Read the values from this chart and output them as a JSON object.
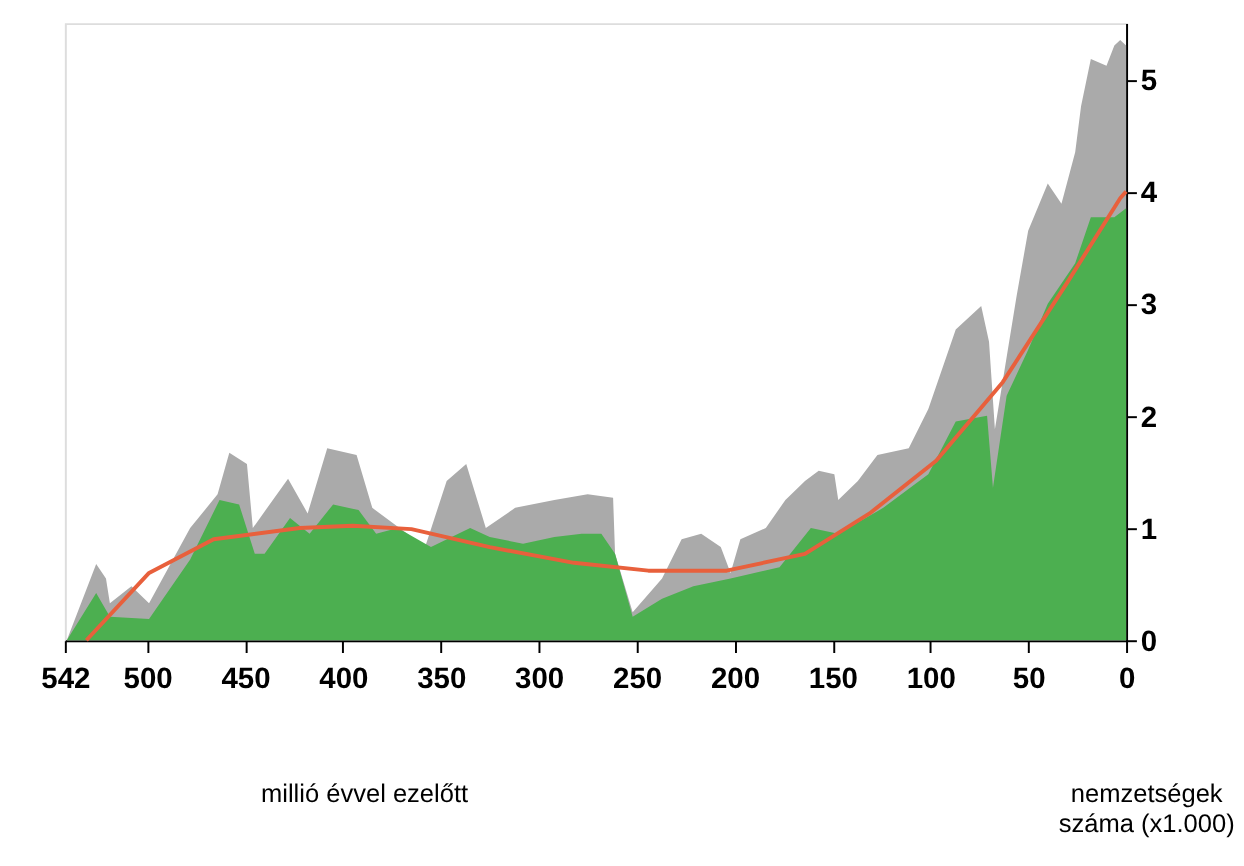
{
  "chart_data": {
    "type": "area",
    "xlabel": "millió évvel ezelőtt",
    "ylabel": "nemzetségek száma (x1.000)",
    "xlim": [
      542,
      0
    ],
    "xticks": [
      542,
      500,
      450,
      400,
      350,
      300,
      250,
      200,
      150,
      100,
      50,
      0
    ],
    "ylim": [
      0,
      5.5
    ],
    "yticks": [
      0,
      1,
      2,
      3,
      4,
      5
    ],
    "grid": false,
    "series": [
      {
        "color": "#aaaaaa",
        "x": [
          541,
          526,
          521,
          519,
          508,
          499,
          478,
          464,
          458,
          449,
          446,
          428,
          418,
          408,
          393,
          385,
          358,
          347,
          337,
          327,
          312,
          292,
          275,
          262,
          261,
          252,
          237,
          227,
          217,
          207,
          202,
          197,
          184,
          174,
          164,
          157,
          149,
          147,
          137,
          127,
          111,
          101,
          87,
          74,
          70,
          67,
          56,
          50,
          40,
          33,
          26,
          23,
          18,
          10,
          6,
          3,
          0
        ],
        "values": [
          0,
          0.68,
          0.55,
          0.33,
          0.48,
          0.33,
          1.0,
          1.3,
          1.67,
          1.57,
          1.0,
          1.44,
          1.13,
          1.71,
          1.65,
          1.18,
          0.83,
          1.42,
          1.57,
          1.0,
          1.18,
          1.25,
          1.3,
          1.27,
          0.77,
          0.25,
          0.55,
          0.9,
          0.95,
          0.83,
          0.6,
          0.9,
          1.0,
          1.25,
          1.42,
          1.51,
          1.48,
          1.25,
          1.42,
          1.65,
          1.71,
          2.06,
          2.77,
          2.98,
          2.66,
          1.88,
          3.06,
          3.65,
          4.07,
          3.89,
          4.35,
          4.76,
          5.18,
          5.12,
          5.3,
          5.35,
          5.3
        ]
      },
      {
        "color": "#4caf50",
        "x": [
          541,
          526,
          519,
          499,
          478,
          463,
          453,
          445,
          440,
          427,
          417,
          405,
          392,
          383,
          372,
          355,
          335,
          325,
          308,
          292,
          278,
          268,
          261,
          252,
          237,
          221,
          202,
          177,
          161,
          147,
          124,
          101,
          87,
          71,
          68,
          61,
          50,
          40,
          26,
          18,
          6,
          0
        ],
        "values": [
          0,
          0.42,
          0.21,
          0.19,
          0.72,
          1.25,
          1.21,
          0.77,
          0.77,
          1.09,
          0.95,
          1.21,
          1.16,
          0.95,
          1.0,
          0.83,
          1.0,
          0.92,
          0.86,
          0.92,
          0.95,
          0.95,
          0.77,
          0.21,
          0.37,
          0.48,
          0.55,
          0.65,
          1.0,
          0.95,
          1.18,
          1.48,
          1.95,
          2.0,
          1.36,
          2.18,
          2.59,
          3.0,
          3.36,
          3.77,
          3.77,
          3.85
        ]
      },
      {
        "type": "line",
        "color": "#e8603c",
        "x": [
          531,
          499,
          466,
          422,
          395,
          365,
          325,
          282,
          244,
          204,
          164,
          131,
          97,
          63,
          30,
          3,
          0
        ],
        "values": [
          0,
          0.6,
          0.9,
          1.0,
          1.02,
          0.99,
          0.83,
          0.69,
          0.62,
          0.62,
          0.77,
          1.13,
          1.6,
          2.3,
          3.19,
          3.94,
          4.0
        ]
      }
    ]
  }
}
